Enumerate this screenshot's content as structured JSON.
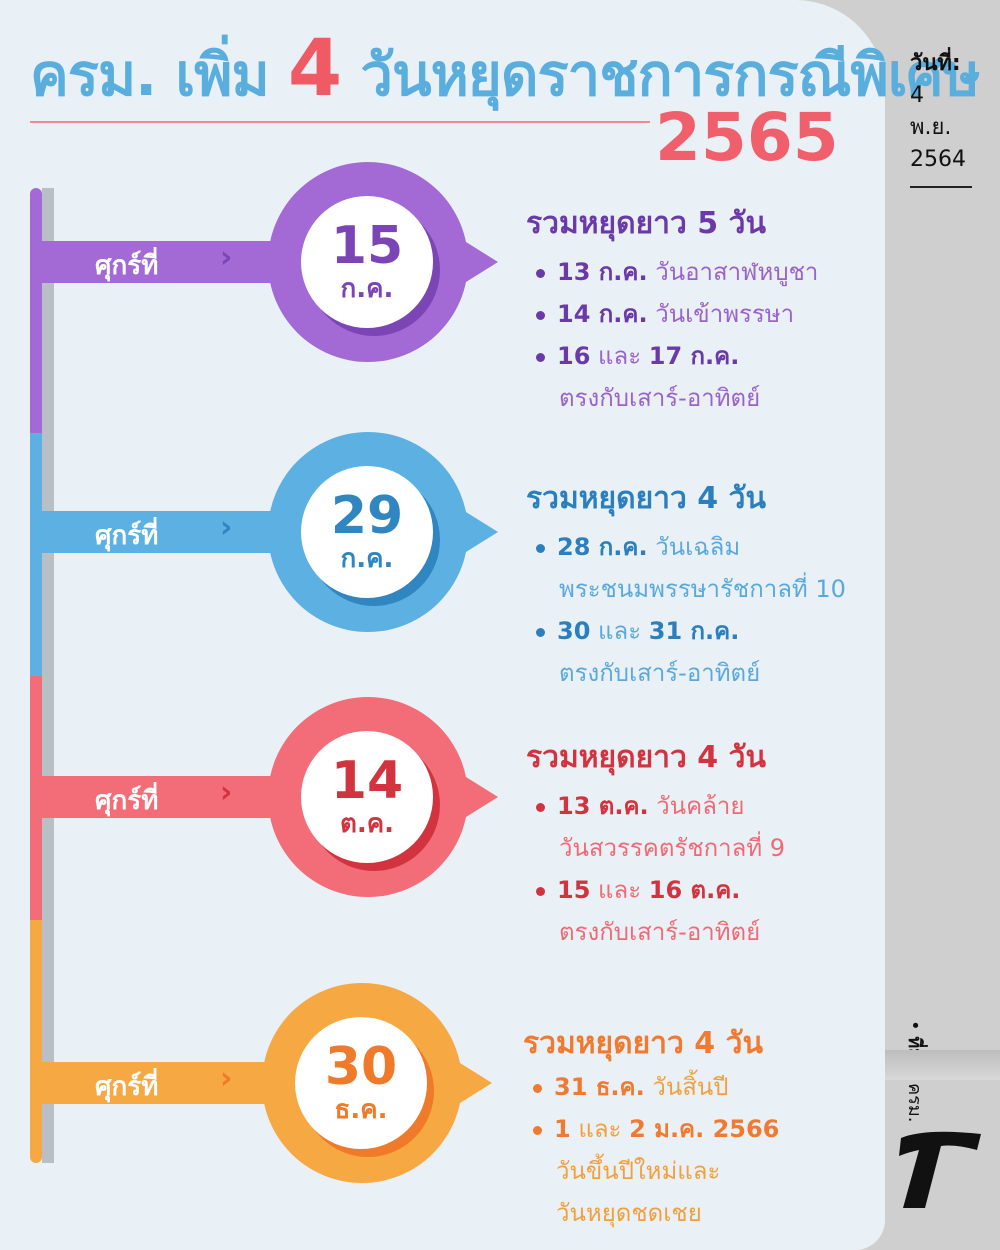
{
  "header": {
    "title_prefix": "ครม. เพิ่ม",
    "title_number": "4",
    "title_suffix": "วันหยุดราชการกรณีพิเศษ",
    "year": "2565"
  },
  "side": {
    "date_label": "วันที่:",
    "date_day": "4",
    "date_month": "พ.ย.",
    "date_year": "2564",
    "source_label": "ที่มา:",
    "source_value": "ครม.",
    "bullet": "•"
  },
  "friday_label": "ศุกร์ที่",
  "chevron": "›",
  "holidays": [
    {
      "color": "#a36ad6",
      "dark": "#7b45b6",
      "text": "#6a3aa8",
      "light": "#9a63cc",
      "day": "15",
      "month": "ก.ค.",
      "summary": "รวมหยุดยาว 5 วัน",
      "items": [
        {
          "bold": "13 ก.ค.",
          "rest": "วันอาสาฬหบูชา"
        },
        {
          "bold": "14 ก.ค.",
          "rest": "วันเข้าพรรษา"
        },
        {
          "bold": "16",
          "mid": "และ",
          "bold2": "17 ก.ค."
        },
        {
          "rest": "ตรงกับเสาร์-อาทิตย์"
        }
      ]
    },
    {
      "color": "#5cb1e2",
      "dark": "#2f86c0",
      "text": "#2b7fbe",
      "light": "#5ba9dc",
      "day": "29",
      "month": "ก.ค.",
      "summary": "รวมหยุดยาว 4 วัน",
      "items": [
        {
          "bold": "28 ก.ค.",
          "rest": "วันเฉลิม"
        },
        {
          "rest": "พระชนมพรรษารัชกาลที่ 10"
        },
        {
          "bold": "30",
          "mid": "และ",
          "bold2": "31 ก.ค."
        },
        {
          "rest": "ตรงกับเสาร์-อาทิตย์"
        }
      ]
    },
    {
      "color": "#f26d78",
      "dark": "#d2343f",
      "text": "#d2343f",
      "light": "#ee6b76",
      "day": "14",
      "month": "ต.ค.",
      "summary": "รวมหยุดยาว 4 วัน",
      "items": [
        {
          "bold": "13 ต.ค.",
          "rest": "วันคล้าย"
        },
        {
          "rest": "วันสวรรคตรัชกาลที่ 9"
        },
        {
          "bold": "15",
          "mid": "และ",
          "bold2": "16 ต.ค."
        },
        {
          "rest": "ตรงกับเสาร์-อาทิตย์"
        }
      ]
    },
    {
      "color": "#f6a843",
      "dark": "#ef7a2a",
      "text": "#ef7a30",
      "light": "#f2a03e",
      "day": "30",
      "month": "ธ.ค.",
      "summary": "รวมหยุดยาว 4 วัน",
      "items": [
        {
          "bold": "31 ธ.ค.",
          "rest": "วันสิ้นปี"
        },
        {
          "bold": "1",
          "mid": "และ",
          "bold2": "2 ม.ค. 2566"
        },
        {
          "rest": "วันขึ้นปีใหม่และ"
        },
        {
          "rest": "วันหยุดชดเชย"
        }
      ]
    }
  ]
}
